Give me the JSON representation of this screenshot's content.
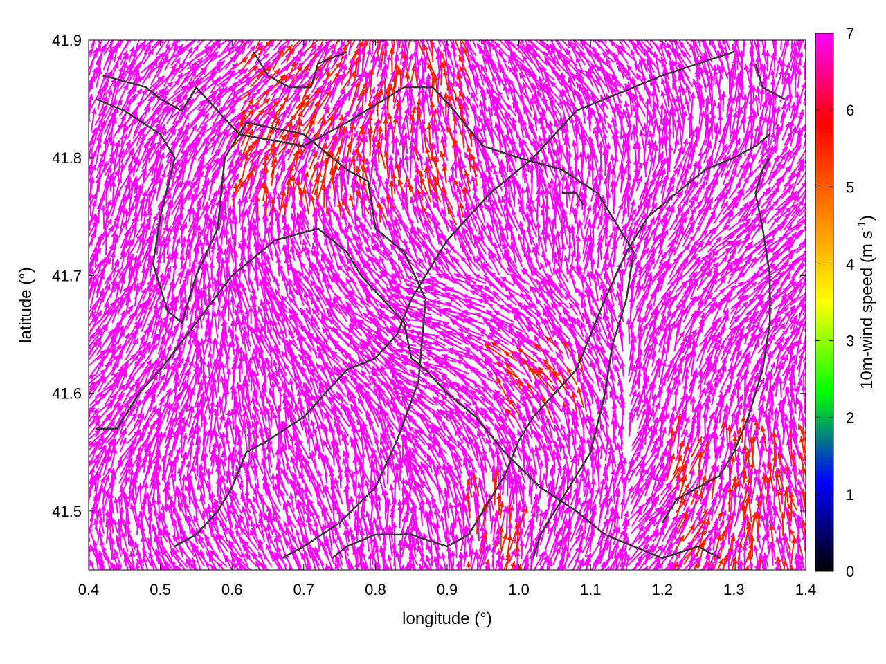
{
  "chart_data": {
    "type": "vector-field",
    "xlabel": "longitude (°)",
    "ylabel": "latitude (°)",
    "xlim": [
      0.4,
      1.4
    ],
    "ylim": [
      41.45,
      41.9
    ],
    "xticks": [
      "0.4",
      "0.5",
      "0.6",
      "0.7",
      "0.8",
      "0.9",
      "1.0",
      "1.1",
      "1.2",
      "1.3",
      "1.4"
    ],
    "yticks": [
      "41.5",
      "41.6",
      "41.7",
      "41.8",
      "41.9"
    ],
    "colorbar": {
      "label": "10m-wind speed (m s-1)",
      "label_main": "10m-wind speed (m s",
      "label_sup": "-1",
      "label_end": ")",
      "range": [
        0,
        7
      ],
      "ticks": [
        "0",
        "1",
        "2",
        "3",
        "4",
        "5",
        "6",
        "7"
      ],
      "palette": [
        "#000000",
        "#0000ff",
        "#00ff00",
        "#ffff00",
        "#ff8000",
        "#ff0000",
        "#ff00ff"
      ]
    },
    "arrow_color": "#ff00ff",
    "slow_arrow_color": "#ff2000",
    "coast_color": "#333333",
    "coastlines": [
      [
        [
          0.42,
          41.87
        ],
        [
          0.48,
          41.86
        ],
        [
          0.5,
          41.85
        ],
        [
          0.53,
          41.84
        ],
        [
          0.55,
          41.86
        ],
        [
          0.58,
          41.84
        ],
        [
          0.61,
          41.82
        ],
        [
          0.7,
          41.81
        ],
        [
          0.76,
          41.83
        ],
        [
          0.84,
          41.86
        ],
        [
          0.88,
          41.86
        ],
        [
          0.91,
          41.84
        ],
        [
          0.95,
          41.81
        ],
        [
          1.0,
          41.8
        ],
        [
          1.06,
          41.79
        ],
        [
          1.11,
          41.77
        ],
        [
          1.14,
          41.74
        ],
        [
          1.16,
          41.72
        ],
        [
          1.15,
          41.68
        ],
        [
          1.13,
          41.64
        ],
        [
          1.12,
          41.6
        ],
        [
          1.1,
          41.55
        ],
        [
          1.06,
          41.51
        ],
        [
          1.03,
          41.48
        ],
        [
          1.02,
          41.46
        ]
      ],
      [
        [
          0.41,
          41.85
        ],
        [
          0.45,
          41.84
        ],
        [
          0.5,
          41.82
        ],
        [
          0.52,
          41.8
        ],
        [
          0.5,
          41.75
        ],
        [
          0.49,
          41.71
        ],
        [
          0.51,
          41.67
        ],
        [
          0.53,
          41.66
        ],
        [
          0.55,
          41.7
        ],
        [
          0.58,
          41.74
        ],
        [
          0.59,
          41.8
        ],
        [
          0.62,
          41.83
        ],
        [
          0.7,
          41.82
        ],
        [
          0.76,
          41.79
        ],
        [
          0.79,
          41.78
        ],
        [
          0.8,
          41.74
        ],
        [
          0.84,
          41.72
        ],
        [
          0.87,
          41.68
        ],
        [
          0.86,
          41.61
        ],
        [
          0.83,
          41.56
        ],
        [
          0.8,
          41.52
        ],
        [
          0.75,
          41.49
        ],
        [
          0.7,
          41.47
        ],
        [
          0.67,
          41.46
        ]
      ],
      [
        [
          0.41,
          41.57
        ],
        [
          0.44,
          41.57
        ],
        [
          0.47,
          41.6
        ],
        [
          0.5,
          41.62
        ],
        [
          0.55,
          41.66
        ],
        [
          0.6,
          41.7
        ],
        [
          0.66,
          41.73
        ],
        [
          0.72,
          41.74
        ],
        [
          0.76,
          41.72
        ],
        [
          0.78,
          41.7
        ],
        [
          0.81,
          41.68
        ],
        [
          0.84,
          41.66
        ],
        [
          0.85,
          41.63
        ],
        [
          0.87,
          41.62
        ],
        [
          0.9,
          41.6
        ],
        [
          0.94,
          41.58
        ],
        [
          0.98,
          41.55
        ],
        [
          1.03,
          41.52
        ],
        [
          1.08,
          41.5
        ],
        [
          1.12,
          41.48
        ],
        [
          1.16,
          41.47
        ],
        [
          1.2,
          41.46
        ],
        [
          1.25,
          41.47
        ],
        [
          1.28,
          41.46
        ]
      ],
      [
        [
          0.52,
          41.47
        ],
        [
          0.55,
          41.48
        ],
        [
          0.58,
          41.5
        ],
        [
          0.6,
          41.52
        ],
        [
          0.62,
          41.55
        ],
        [
          0.65,
          41.56
        ],
        [
          0.7,
          41.58
        ],
        [
          0.73,
          41.6
        ],
        [
          0.76,
          41.62
        ],
        [
          0.8,
          41.63
        ],
        [
          0.83,
          41.65
        ],
        [
          0.85,
          41.68
        ],
        [
          0.87,
          41.7
        ],
        [
          0.9,
          41.73
        ],
        [
          0.93,
          41.75
        ],
        [
          0.96,
          41.77
        ],
        [
          1.0,
          41.79
        ],
        [
          1.02,
          41.8
        ],
        [
          1.05,
          41.82
        ],
        [
          1.08,
          41.84
        ],
        [
          1.12,
          41.85
        ],
        [
          1.16,
          41.86
        ],
        [
          1.2,
          41.87
        ],
        [
          1.25,
          41.88
        ],
        [
          1.3,
          41.89
        ]
      ],
      [
        [
          0.74,
          41.46
        ],
        [
          0.76,
          41.47
        ],
        [
          0.8,
          41.48
        ],
        [
          0.85,
          41.48
        ],
        [
          0.9,
          41.47
        ],
        [
          0.93,
          41.48
        ],
        [
          0.95,
          41.5
        ],
        [
          0.98,
          41.53
        ],
        [
          1.0,
          41.56
        ],
        [
          1.02,
          41.58
        ],
        [
          1.05,
          41.6
        ],
        [
          1.08,
          41.62
        ],
        [
          1.1,
          41.65
        ],
        [
          1.12,
          41.68
        ],
        [
          1.15,
          41.72
        ],
        [
          1.18,
          41.75
        ],
        [
          1.22,
          41.77
        ],
        [
          1.26,
          41.79
        ],
        [
          1.3,
          41.8
        ],
        [
          1.33,
          41.81
        ],
        [
          1.35,
          41.82
        ]
      ],
      [
        [
          1.2,
          41.49
        ],
        [
          1.22,
          41.51
        ],
        [
          1.25,
          41.52
        ],
        [
          1.28,
          41.53
        ],
        [
          1.3,
          41.55
        ],
        [
          1.32,
          41.58
        ],
        [
          1.34,
          41.62
        ],
        [
          1.35,
          41.66
        ],
        [
          1.35,
          41.7
        ],
        [
          1.34,
          41.74
        ],
        [
          1.33,
          41.77
        ],
        [
          1.34,
          41.79
        ],
        [
          1.35,
          41.8
        ]
      ],
      [
        [
          0.63,
          41.89
        ],
        [
          0.65,
          41.87
        ],
        [
          0.68,
          41.86
        ],
        [
          0.71,
          41.86
        ],
        [
          0.72,
          41.88
        ],
        [
          0.76,
          41.89
        ]
      ],
      [
        [
          1.33,
          41.88
        ],
        [
          1.34,
          41.86
        ],
        [
          1.37,
          41.85
        ]
      ],
      [
        [
          1.06,
          41.77
        ],
        [
          1.08,
          41.77
        ],
        [
          1.09,
          41.76
        ]
      ]
    ]
  }
}
